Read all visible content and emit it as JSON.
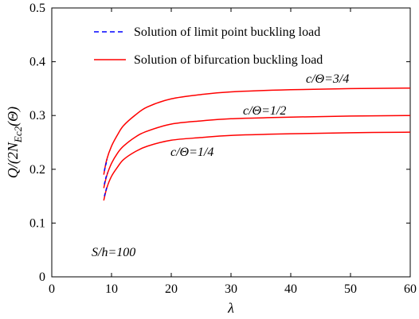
{
  "chart_data": {
    "type": "line",
    "xlabel": "λ",
    "ylabel": "Q/(2N",
    "ylabel_sub": "Ec2",
    "ylabel_tail": "(Θ)",
    "xlim": [
      0,
      60
    ],
    "ylim": [
      0,
      0.5
    ],
    "xticks": [
      0,
      10,
      20,
      30,
      40,
      50,
      60
    ],
    "yticks": [
      0,
      0.1,
      0.2,
      0.3,
      0.4,
      0.5
    ],
    "xtick_labels": [
      "0",
      "10",
      "20",
      "30",
      "40",
      "50",
      "60"
    ],
    "ytick_labels": [
      "0",
      "0.1",
      "0.2",
      "0.3",
      "0.4",
      "0.5"
    ],
    "grid": false,
    "legend_position": "top-left",
    "legend": [
      {
        "label": "Solution of limit point buckling load",
        "color": "#0000ff",
        "style": "dashed"
      },
      {
        "label": "Solution of bifurcation buckling load",
        "color": "#ff0000",
        "style": "solid"
      }
    ],
    "annotations": {
      "param": "S/h=100",
      "curve1": "c/Θ=3/4",
      "curve2": "c/Θ=1/2",
      "curve3": "c/Θ=1/4"
    },
    "series": [
      {
        "name": "c/Θ=3/4",
        "color": "#ff0000",
        "style": "solid",
        "x": [
          8.7,
          9.2,
          10,
          11,
          12,
          14,
          16,
          20,
          25,
          30,
          40,
          50,
          60
        ],
        "y": [
          0.19,
          0.218,
          0.243,
          0.264,
          0.281,
          0.301,
          0.316,
          0.331,
          0.339,
          0.344,
          0.348,
          0.35,
          0.351
        ]
      },
      {
        "name": "c/Θ=1/2",
        "color": "#ff0000",
        "style": "solid",
        "x": [
          8.7,
          9.2,
          10,
          11,
          12,
          14,
          16,
          20,
          25,
          30,
          40,
          50,
          60
        ],
        "y": [
          0.165,
          0.188,
          0.211,
          0.23,
          0.243,
          0.26,
          0.271,
          0.284,
          0.29,
          0.294,
          0.297,
          0.299,
          0.3
        ]
      },
      {
        "name": "c/Θ=1/4",
        "color": "#ff0000",
        "style": "solid",
        "x": [
          8.7,
          9.2,
          10,
          11,
          12,
          14,
          16,
          20,
          25,
          30,
          40,
          50,
          60
        ],
        "y": [
          0.142,
          0.165,
          0.187,
          0.204,
          0.218,
          0.233,
          0.243,
          0.254,
          0.259,
          0.263,
          0.266,
          0.268,
          0.269
        ]
      },
      {
        "name": "limit c/Θ=3/4",
        "color": "#0000ff",
        "style": "dashed",
        "x": [
          8.8,
          9.0,
          9.3
        ],
        "y": [
          0.197,
          0.207,
          0.218
        ]
      },
      {
        "name": "limit c/Θ=1/2",
        "color": "#0000ff",
        "style": "dashed",
        "x": [
          8.8,
          9.0,
          9.3
        ],
        "y": [
          0.172,
          0.182,
          0.193
        ]
      },
      {
        "name": "limit c/Θ=1/4",
        "color": "#0000ff",
        "style": "dashed",
        "x": [
          8.8,
          9.0,
          9.3
        ],
        "y": [
          0.15,
          0.158,
          0.17
        ]
      }
    ]
  }
}
